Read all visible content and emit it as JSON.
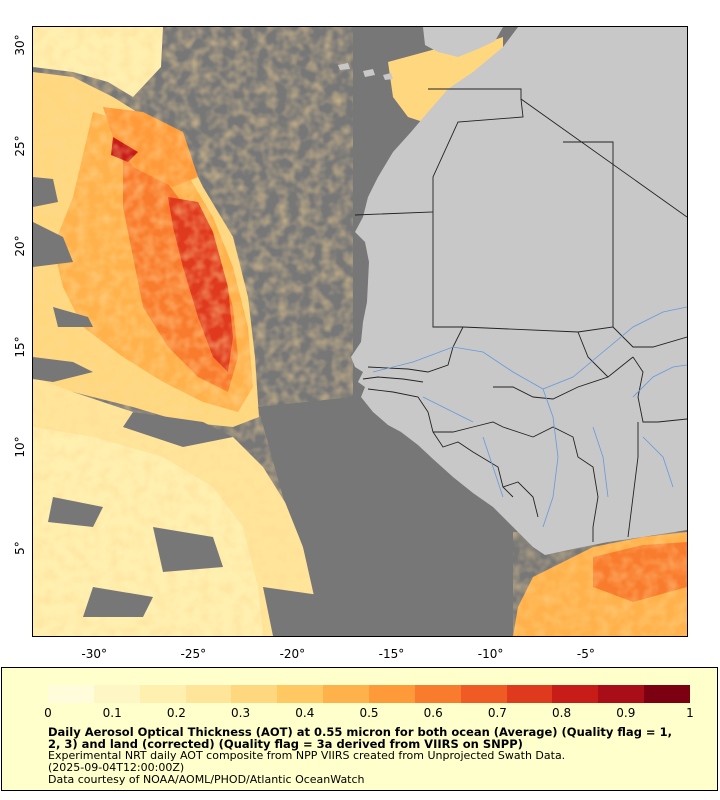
{
  "map": {
    "x_ticks": [
      "-30°",
      "-25°",
      "-20°",
      "-15°",
      "-10°",
      "-5°"
    ],
    "y_ticks": [
      "30°",
      "25°",
      "20°",
      "15°",
      "10°",
      "5°"
    ],
    "lon_range": [
      -33.3,
      -0.2
    ],
    "lat_range": [
      0.6,
      31.0
    ],
    "colors": {
      "no_data": "#777777",
      "land": "#c8c8c8",
      "rivers": "#6699dd",
      "borders": "#222222"
    }
  },
  "legend": {
    "colorbar_ticks": [
      "0",
      "0.1",
      "0.2",
      "0.3",
      "0.4",
      "0.5",
      "0.6",
      "0.7",
      "0.8",
      "0.9",
      "1"
    ],
    "colorbar_colors": [
      "#fffcdc",
      "#fff6c6",
      "#fff0b0",
      "#ffe59a",
      "#ffd77f",
      "#ffc862",
      "#ffb24c",
      "#ff9a3a",
      "#f97c2e",
      "#ef5a25",
      "#e03a1e",
      "#c81c18",
      "#a80d18",
      "#7a0012"
    ],
    "title_line1": "Daily Aerosol Optical Thickness (AOT) at 0.55 micron for both ocean (Average) (Quality flag = 1,",
    "title_line2": "2, 3) and land (corrected) (Quality flag = 3a derived from VIIRS on SNPP)",
    "line3": "Experimental NRT daily AOT composite from NPP VIIRS created from Unprojected Swath Data.",
    "line4": "(2025-09-04T12:00:00Z)",
    "line5": "Data courtesy of NOAA/AOML/PHOD/Atlantic OceanWatch"
  }
}
